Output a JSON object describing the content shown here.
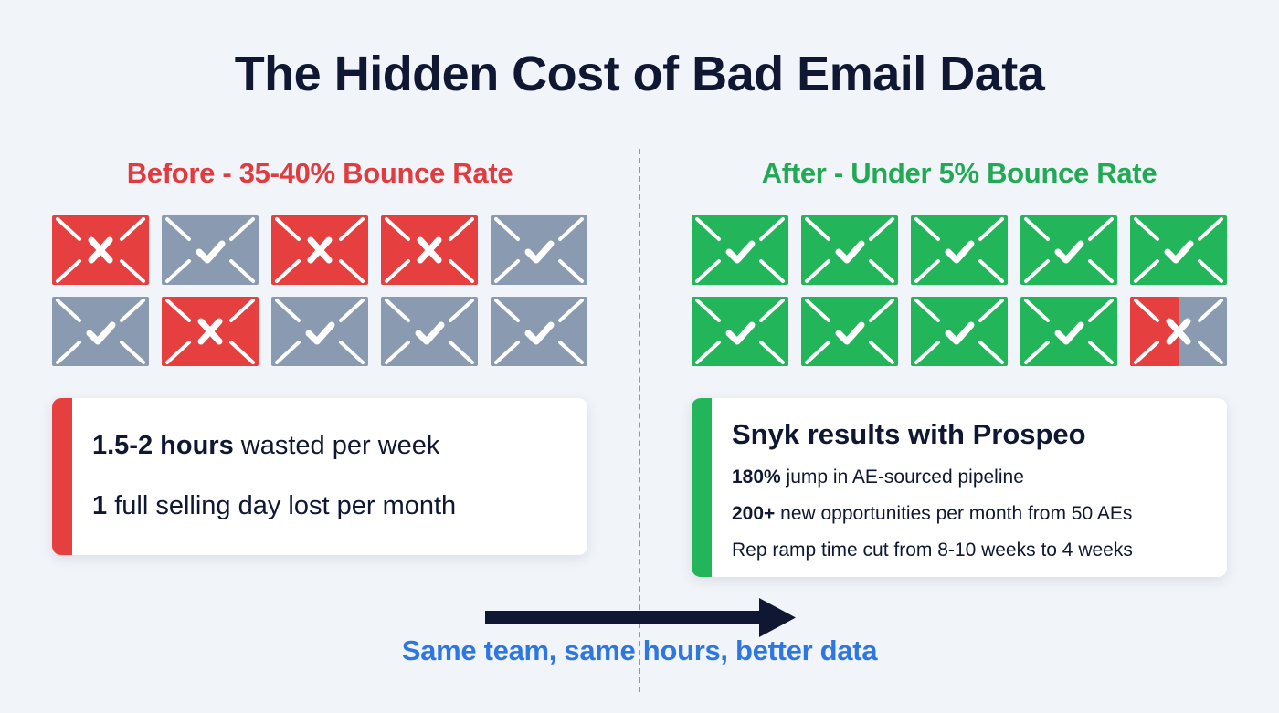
{
  "title": "The Hidden Cost of Bad Email Data",
  "colors": {
    "background": "#f1f4f8",
    "title": "#0f1733",
    "bad": "#e5403f",
    "neutral": "#8a9ab0",
    "good": "#22b55a",
    "tagline": "#2f77e0"
  },
  "before": {
    "heading": "Before - 35-40% Bounce Rate",
    "envelopes": [
      {
        "status": "bounced",
        "icon": "x-icon"
      },
      {
        "status": "delivered-neutral",
        "icon": "check-icon"
      },
      {
        "status": "bounced",
        "icon": "x-icon"
      },
      {
        "status": "bounced",
        "icon": "x-icon"
      },
      {
        "status": "delivered-neutral",
        "icon": "check-icon"
      },
      {
        "status": "delivered-neutral",
        "icon": "check-icon"
      },
      {
        "status": "bounced",
        "icon": "x-icon"
      },
      {
        "status": "delivered-neutral",
        "icon": "check-icon"
      },
      {
        "status": "delivered-neutral",
        "icon": "check-icon"
      },
      {
        "status": "delivered-neutral",
        "icon": "check-icon"
      }
    ],
    "card": {
      "line1_bold": "1.5-2 hours",
      "line1_rest": " wasted per week",
      "line2_bold": "1",
      "line2_rest": " full selling day lost per month"
    }
  },
  "after": {
    "heading": "After - Under 5% Bounce Rate",
    "envelopes": [
      {
        "status": "delivered",
        "icon": "check-icon"
      },
      {
        "status": "delivered",
        "icon": "check-icon"
      },
      {
        "status": "delivered",
        "icon": "check-icon"
      },
      {
        "status": "delivered",
        "icon": "check-icon"
      },
      {
        "status": "delivered",
        "icon": "check-icon"
      },
      {
        "status": "delivered",
        "icon": "check-icon"
      },
      {
        "status": "delivered",
        "icon": "check-icon"
      },
      {
        "status": "delivered",
        "icon": "check-icon"
      },
      {
        "status": "delivered",
        "icon": "check-icon"
      },
      {
        "status": "partial-bounce",
        "icon": "x-icon"
      }
    ],
    "card": {
      "title": "Snyk results with Prospeo",
      "line1_bold": "180%",
      "line1_rest": " jump in AE-sourced pipeline",
      "line2_bold": "200+",
      "line2_rest": " new opportunities per month from 50 AEs",
      "line3": "Rep ramp time cut from 8-10 weeks to 4 weeks"
    }
  },
  "tagline": "Same team, same hours, better data"
}
